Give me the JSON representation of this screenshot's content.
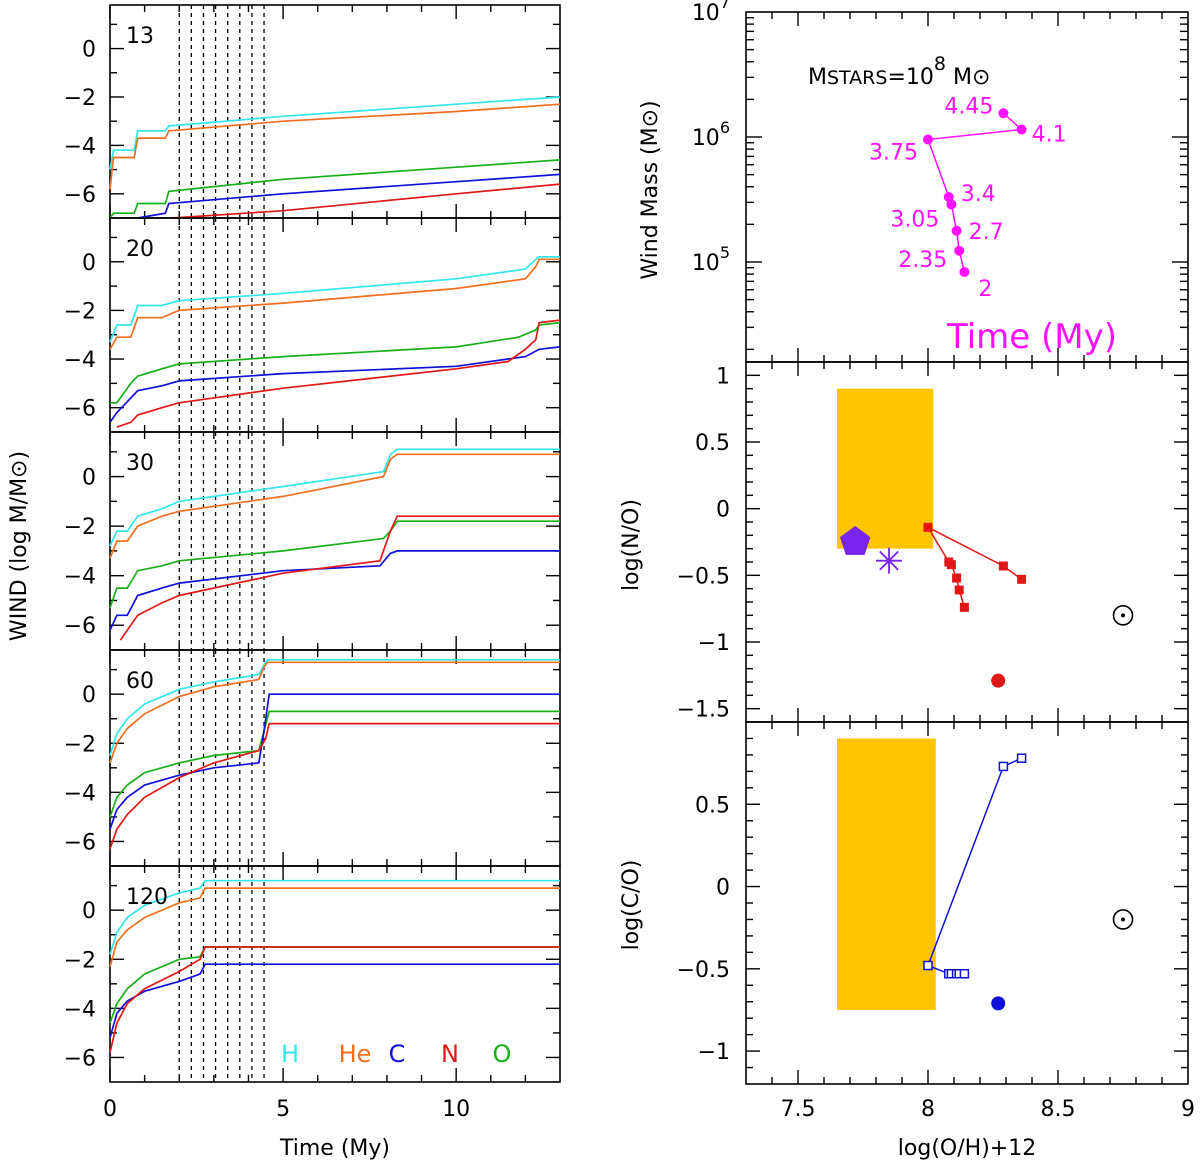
{
  "colors": {
    "H": "#33e6ea",
    "He": "#f07020",
    "C": "#1010d8",
    "N": "#e01818",
    "O": "#18b018",
    "magenta": "#ff10ff",
    "gold": "#ffc400",
    "violet": "#7a22ee",
    "red": "#e01818",
    "blue": "#1010d8"
  },
  "chart_data": [
    {
      "type": "line",
      "id": "wind-panels",
      "title": "",
      "xlabel": "Time (My)",
      "ylabel": "WIND (log M/M⊙)",
      "xlim": [
        0,
        13
      ],
      "ylim": [
        -7,
        1.8
      ],
      "x_ticks": [
        "0",
        "5",
        "10"
      ],
      "y_ticks": [
        "0",
        "−2",
        "−4",
        "−6"
      ],
      "dashed_times": [
        2.0,
        2.35,
        2.7,
        3.05,
        3.4,
        3.75,
        4.1,
        4.45
      ],
      "legend": [
        "H",
        "He",
        "C",
        "N",
        "O"
      ],
      "panels": [
        {
          "label": "13",
          "series": [
            {
              "name": "H",
              "x": [
                0,
                0.1,
                0.7,
                0.8,
                1.6,
                1.7,
                5,
                10,
                13
              ],
              "y": [
                -5.0,
                -4.2,
                -4.2,
                -3.4,
                -3.4,
                -3.2,
                -2.8,
                -2.3,
                -2.0
              ]
            },
            {
              "name": "He",
              "x": [
                0,
                0.1,
                0.7,
                0.8,
                1.6,
                1.7,
                5,
                10,
                13
              ],
              "y": [
                -5.8,
                -4.5,
                -4.5,
                -3.7,
                -3.7,
                -3.4,
                -3.0,
                -2.6,
                -2.3
              ]
            },
            {
              "name": "O",
              "x": [
                0,
                0.1,
                0.7,
                0.8,
                1.6,
                1.7,
                5,
                10,
                13
              ],
              "y": [
                -7.0,
                -6.8,
                -6.8,
                -6.4,
                -6.4,
                -5.9,
                -5.4,
                -4.9,
                -4.6
              ]
            },
            {
              "name": "C",
              "x": [
                0.8,
                1.6,
                1.7,
                5,
                10,
                13
              ],
              "y": [
                -7.0,
                -6.8,
                -6.4,
                -6.0,
                -5.5,
                -5.2
              ]
            },
            {
              "name": "N",
              "x": [
                1.8,
                5,
                10,
                13
              ],
              "y": [
                -7.0,
                -6.7,
                -6.0,
                -5.6
              ]
            }
          ]
        },
        {
          "label": "20",
          "series": [
            {
              "name": "H",
              "x": [
                0,
                0.2,
                0.6,
                0.8,
                1.5,
                2,
                5,
                10,
                12,
                12.3,
                12.4,
                13
              ],
              "y": [
                -3.3,
                -2.6,
                -2.6,
                -1.8,
                -1.8,
                -1.6,
                -1.3,
                -0.7,
                -0.3,
                0.1,
                0.2,
                0.2
              ]
            },
            {
              "name": "He",
              "x": [
                0,
                0.2,
                0.6,
                0.8,
                1.5,
                2,
                5,
                10,
                12,
                12.3,
                12.4,
                13
              ],
              "y": [
                -3.6,
                -3.1,
                -3.1,
                -2.3,
                -2.3,
                -2.0,
                -1.7,
                -1.1,
                -0.7,
                -0.2,
                0.1,
                0.1
              ]
            },
            {
              "name": "O",
              "x": [
                0,
                0.2,
                0.6,
                0.8,
                1.5,
                2,
                5,
                10,
                11.8,
                12.3,
                12.4,
                13
              ],
              "y": [
                -5.8,
                -5.8,
                -5.0,
                -4.7,
                -4.4,
                -4.2,
                -3.9,
                -3.5,
                -3.1,
                -2.8,
                -2.6,
                -2.5
              ]
            },
            {
              "name": "C",
              "x": [
                0,
                0.2,
                0.6,
                0.8,
                1.5,
                2,
                5,
                10,
                12,
                12.4,
                13
              ],
              "y": [
                -6.6,
                -6.2,
                -5.6,
                -5.3,
                -5.1,
                -4.9,
                -4.6,
                -4.3,
                -3.9,
                -3.6,
                -3.5
              ]
            },
            {
              "name": "N",
              "x": [
                0.2,
                0.6,
                0.8,
                1.5,
                2,
                5,
                10,
                11.5,
                12,
                12.3,
                12.4,
                13
              ],
              "y": [
                -6.8,
                -6.6,
                -6.3,
                -6.0,
                -5.8,
                -5.2,
                -4.4,
                -4.1,
                -3.6,
                -3.2,
                -2.5,
                -2.4
              ]
            }
          ]
        },
        {
          "label": "30",
          "series": [
            {
              "name": "H",
              "x": [
                0,
                0.2,
                0.5,
                0.8,
                1.5,
                2,
                5,
                7.9,
                8.1,
                8.3,
                9,
                13
              ],
              "y": [
                -2.8,
                -2.2,
                -2.2,
                -1.6,
                -1.3,
                -1.0,
                -0.4,
                0.2,
                0.9,
                1.1,
                1.1,
                1.1
              ]
            },
            {
              "name": "He",
              "x": [
                0,
                0.2,
                0.5,
                0.8,
                1.5,
                2,
                5,
                7.9,
                8.1,
                8.3,
                9,
                13
              ],
              "y": [
                -3.3,
                -2.6,
                -2.6,
                -2.0,
                -1.6,
                -1.4,
                -0.8,
                0,
                0.7,
                0.9,
                0.9,
                0.9
              ]
            },
            {
              "name": "O",
              "x": [
                0,
                0.2,
                0.5,
                0.8,
                1.5,
                2,
                5,
                7.9,
                8.1,
                8.3,
                9,
                13
              ],
              "y": [
                -5.3,
                -4.5,
                -4.5,
                -3.8,
                -3.6,
                -3.4,
                -3.0,
                -2.5,
                -2.2,
                -1.8,
                -1.8,
                -1.8
              ]
            },
            {
              "name": "C",
              "x": [
                0,
                0.2,
                0.5,
                0.8,
                1.5,
                2,
                5,
                7.8,
                8.1,
                8.3,
                9,
                13
              ],
              "y": [
                -6.2,
                -5.6,
                -5.6,
                -4.8,
                -4.5,
                -4.3,
                -3.8,
                -3.6,
                -3.1,
                -3.0,
                -3.0,
                -3.0
              ]
            },
            {
              "name": "N",
              "x": [
                0.3,
                0.5,
                0.8,
                1.5,
                2,
                5,
                7.8,
                8.1,
                8.3,
                9,
                13
              ],
              "y": [
                -6.6,
                -6.2,
                -5.6,
                -5.1,
                -4.8,
                -3.9,
                -3.4,
                -2.2,
                -1.6,
                -1.6,
                -1.6
              ]
            }
          ]
        },
        {
          "label": "60",
          "series": [
            {
              "name": "H",
              "x": [
                0,
                0.2,
                0.5,
                1,
                2,
                3,
                4.3,
                4.45,
                4.55,
                5,
                13
              ],
              "y": [
                -2.5,
                -1.6,
                -1.0,
                -0.4,
                0.2,
                0.5,
                0.8,
                1.2,
                1.4,
                1.4,
                1.4
              ]
            },
            {
              "name": "He",
              "x": [
                0,
                0.2,
                0.5,
                1,
                2,
                3,
                4.3,
                4.45,
                4.55,
                5,
                13
              ],
              "y": [
                -2.8,
                -2.0,
                -1.4,
                -0.8,
                -0.1,
                0.3,
                0.6,
                1.1,
                1.3,
                1.3,
                1.3
              ]
            },
            {
              "name": "O",
              "x": [
                0,
                0.2,
                0.5,
                1,
                2,
                3,
                4.3,
                4.45,
                4.6,
                5,
                13
              ],
              "y": [
                -5.0,
                -4.2,
                -3.7,
                -3.2,
                -2.8,
                -2.5,
                -2.3,
                -1.5,
                -0.7,
                -0.7,
                -0.7
              ]
            },
            {
              "name": "C",
              "x": [
                0,
                0.2,
                0.5,
                1,
                2,
                3,
                4.3,
                4.45,
                4.6,
                5,
                13
              ],
              "y": [
                -5.5,
                -4.7,
                -4.2,
                -3.7,
                -3.3,
                -3.0,
                -2.8,
                -1.5,
                0,
                0,
                0
              ]
            },
            {
              "name": "N",
              "x": [
                0,
                0.2,
                0.5,
                1,
                2,
                3,
                4.3,
                4.5,
                4.6,
                5,
                13
              ],
              "y": [
                -6.3,
                -5.5,
                -4.9,
                -4.2,
                -3.4,
                -2.8,
                -2.3,
                -1.8,
                -1.2,
                -1.2,
                -1.2
              ]
            }
          ]
        },
        {
          "label": "120",
          "series": [
            {
              "name": "H",
              "x": [
                0,
                0.2,
                0.5,
                1,
                2,
                2.6,
                2.75,
                3,
                13
              ],
              "y": [
                -1.8,
                -0.9,
                -0.3,
                0.2,
                0.7,
                0.9,
                1.2,
                1.2,
                1.2
              ]
            },
            {
              "name": "He",
              "x": [
                0,
                0.2,
                0.5,
                1,
                2,
                2.6,
                2.75,
                3,
                13
              ],
              "y": [
                -2.3,
                -1.3,
                -0.8,
                -0.3,
                0.3,
                0.5,
                0.9,
                0.9,
                0.9
              ]
            },
            {
              "name": "O",
              "x": [
                0,
                0.2,
                0.5,
                1,
                2,
                2.6,
                2.75,
                3,
                13
              ],
              "y": [
                -4.6,
                -3.8,
                -3.2,
                -2.6,
                -2.0,
                -1.9,
                -1.5,
                -1.5,
                -1.5
              ]
            },
            {
              "name": "C",
              "x": [
                0,
                0.2,
                0.5,
                1,
                2,
                2.6,
                2.75,
                3,
                13
              ],
              "y": [
                -5.2,
                -4.2,
                -3.7,
                -3.3,
                -2.9,
                -2.6,
                -2.2,
                -2.2,
                -2.2
              ]
            },
            {
              "name": "N",
              "x": [
                0,
                0.2,
                0.5,
                1,
                2,
                2.6,
                2.75,
                3,
                13
              ],
              "y": [
                -5.8,
                -4.6,
                -3.8,
                -3.2,
                -2.5,
                -2.0,
                -1.5,
                -1.5,
                -1.5
              ]
            }
          ]
        }
      ]
    },
    {
      "type": "scatter",
      "id": "wind-mass",
      "title": "M_STARS = 10^8 M⊙",
      "title_parts": {
        "m": "M",
        "sub": "STARS",
        "eq": "=10",
        "sup": "8",
        "unit": "M⊙"
      },
      "xlabel": "Time (My)",
      "ylabel": "Wind Mass (M⊙)",
      "xlim": [
        7.3,
        9.0
      ],
      "y_log_range": [
        4.2,
        7.0
      ],
      "y_ticks": [
        "10^5",
        "10^6",
        "10^7"
      ],
      "points": [
        {
          "label": "2",
          "x": 8.14,
          "logy": 4.92
        },
        {
          "label": "2.35",
          "x": 8.12,
          "logy": 5.09
        },
        {
          "label": "2.7",
          "x": 8.11,
          "logy": 5.25
        },
        {
          "label": "3.05",
          "x": 8.09,
          "logy": 5.46
        },
        {
          "label": "3.4",
          "x": 8.08,
          "logy": 5.52
        },
        {
          "label": "3.75",
          "x": 8.0,
          "logy": 5.98
        },
        {
          "label": "4.1",
          "x": 8.36,
          "logy": 6.06
        },
        {
          "label": "4.45",
          "x": 8.29,
          "logy": 6.19
        }
      ]
    },
    {
      "type": "scatter",
      "id": "n-over-o",
      "title": "",
      "xlabel": "",
      "ylabel": "log(N/O)",
      "xlim": [
        7.3,
        9.0
      ],
      "ylim": [
        -1.6,
        1.1
      ],
      "y_ticks": [
        "1",
        "0.5",
        "0",
        "−0.5",
        "−1",
        "−1.5"
      ],
      "box": {
        "x": [
          7.65,
          8.02
        ],
        "y": [
          -0.3,
          0.9
        ]
      },
      "track": {
        "x": [
          8.36,
          8.29,
          8.0,
          8.08,
          8.09,
          8.11,
          8.12,
          8.14
        ],
        "y": [
          -0.53,
          -0.43,
          -0.14,
          -0.4,
          -0.42,
          -0.52,
          -0.61,
          -0.74
        ]
      },
      "red_dot": {
        "x": 8.27,
        "y": -1.29
      },
      "pentagon": {
        "x": 7.72,
        "y": -0.25
      },
      "asterisk": {
        "x": 7.85,
        "y": -0.39
      },
      "sun": {
        "x": 8.75,
        "y": -0.8
      }
    },
    {
      "type": "scatter",
      "id": "c-over-o",
      "title": "",
      "xlabel": "log(O/H)+12",
      "ylabel": "log(C/O)",
      "xlim": [
        7.3,
        9.0
      ],
      "ylim": [
        -1.2,
        1.0
      ],
      "x_ticks": [
        "7.5",
        "8",
        "8.5",
        "9"
      ],
      "y_ticks": [
        "0.5",
        "0",
        "−0.5",
        "−1"
      ],
      "box": {
        "x": [
          7.65,
          8.03
        ],
        "y": [
          -0.75,
          0.9
        ]
      },
      "track": {
        "x": [
          8.36,
          8.29,
          8.0,
          8.08,
          8.09,
          8.11,
          8.12,
          8.14
        ],
        "y": [
          0.78,
          0.73,
          -0.48,
          -0.53,
          -0.53,
          -0.53,
          -0.53,
          -0.53
        ]
      },
      "blue_dot": {
        "x": 8.27,
        "y": -0.71
      },
      "sun": {
        "x": 8.75,
        "y": -0.2
      }
    }
  ]
}
